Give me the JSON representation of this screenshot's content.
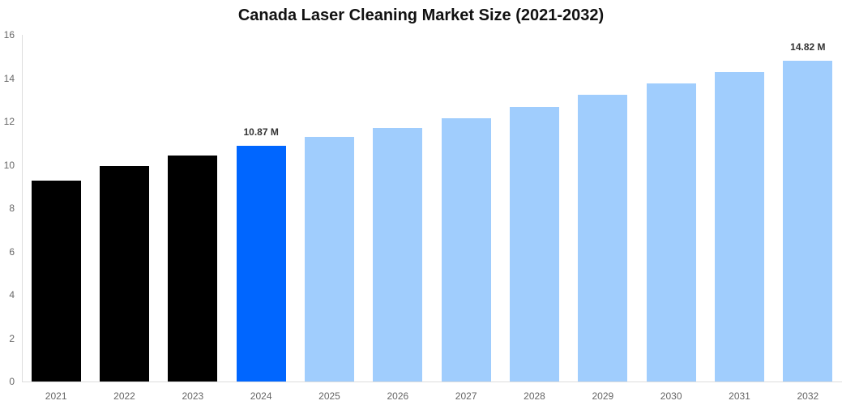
{
  "chart_data": {
    "type": "bar",
    "title": "Canada Laser Cleaning Market Size (2021-2032)",
    "xlabel": "",
    "ylabel": "",
    "ylim": [
      0,
      16
    ],
    "yticks": [
      0,
      2,
      4,
      6,
      8,
      10,
      12,
      14,
      16
    ],
    "grid": false,
    "legend": null,
    "categories": [
      "2021",
      "2022",
      "2023",
      "2024",
      "2025",
      "2026",
      "2027",
      "2028",
      "2029",
      "2030",
      "2031",
      "2032"
    ],
    "values": [
      9.27,
      9.94,
      10.43,
      10.87,
      11.29,
      11.7,
      12.15,
      12.67,
      13.23,
      13.76,
      14.28,
      14.82
    ],
    "bar_colors": [
      "#000000",
      "#000000",
      "#000000",
      "#0066ff",
      "#a0cdfd",
      "#a0cdfd",
      "#a0cdfd",
      "#a0cdfd",
      "#a0cdfd",
      "#a0cdfd",
      "#a0cdfd",
      "#a0cdfd"
    ],
    "annotations": [
      {
        "category": "2024",
        "text": "10.87 M"
      },
      {
        "category": "2032",
        "text": "14.82 M"
      }
    ]
  },
  "colors": {
    "historical": "#000000",
    "base_year": "#0066ff",
    "forecast": "#a0cdfd",
    "axis": "#dddddd",
    "tick_text": "#666666"
  }
}
